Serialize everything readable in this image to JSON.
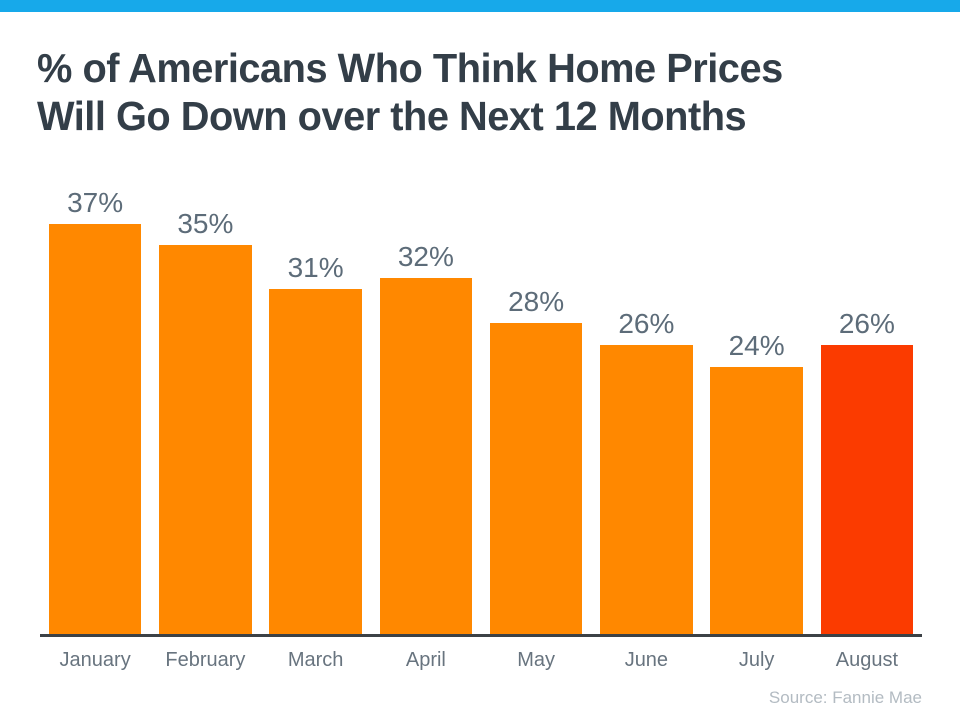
{
  "accent_bar": {
    "color": "#17A9EA"
  },
  "title": {
    "line1": "% of Americans Who Think Home Prices",
    "line2": "Will Go Down over the Next 12 Months",
    "color": "#333E48"
  },
  "chart_data": {
    "type": "bar",
    "title": "% of Americans Who Think Home Prices Will Go Down over the Next 12 Months",
    "categories": [
      "January",
      "February",
      "March",
      "April",
      "May",
      "June",
      "July",
      "August"
    ],
    "values": [
      37,
      35,
      31,
      32,
      28,
      26,
      24,
      26
    ],
    "value_labels": [
      "37%",
      "35%",
      "31%",
      "32%",
      "28%",
      "26%",
      "24%",
      "26%"
    ],
    "unit": "%",
    "xlabel": "",
    "ylabel": "",
    "ylim": [
      0,
      40
    ],
    "grid": false,
    "legend": false,
    "bar_color": "#FF8800",
    "highlight_index": 7,
    "highlight_color": "#FB3B00",
    "value_label_color": "#5D6C79",
    "category_label_color": "#68747F",
    "axis_line_color": "#3C4146"
  },
  "source": {
    "text": "Source: Fannie Mae",
    "color": "#B3BBC2"
  }
}
